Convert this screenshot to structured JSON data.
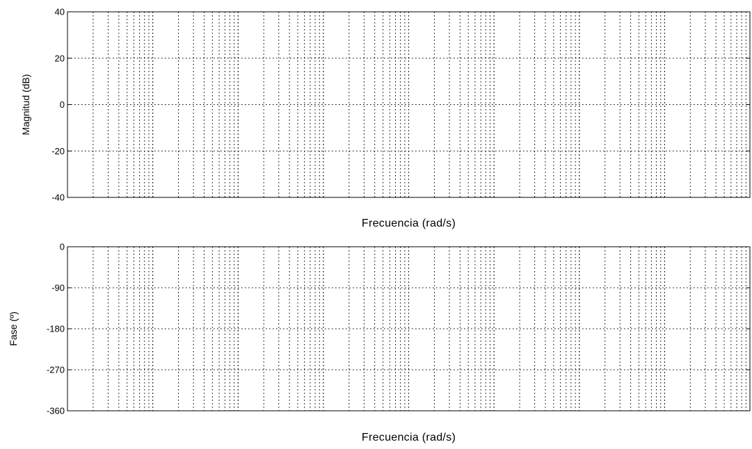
{
  "chart_data": [
    {
      "type": "line",
      "title": "",
      "xlabel": "Frecuencia (rad/s)",
      "ylabel": "Magnitud (dB)",
      "ylim": [
        -40,
        40
      ],
      "yticks": [
        40,
        20,
        0,
        -20,
        -40
      ],
      "ytick_labels": [
        "40",
        "20",
        "0",
        "-20",
        "-40"
      ],
      "xscale": "log",
      "decades": 8,
      "grid": true,
      "series": []
    },
    {
      "type": "line",
      "title": "",
      "xlabel": "Frecuencia (rad/s)",
      "ylabel": "Fase (º)",
      "ylim": [
        -360,
        0
      ],
      "yticks": [
        0,
        -90,
        -180,
        -270,
        -360
      ],
      "ytick_labels": [
        "0",
        "-90",
        "-180",
        "-270",
        "-360"
      ],
      "xscale": "log",
      "decades": 8,
      "grid": true,
      "series": []
    }
  ]
}
